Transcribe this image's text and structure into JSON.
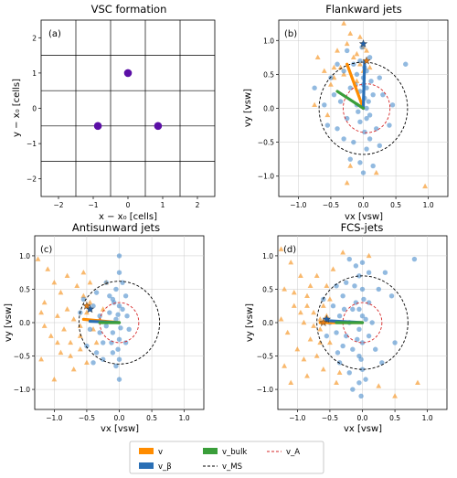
{
  "chart_data": [
    {
      "type": "scatter",
      "panel": "(a)",
      "title": "VSC formation",
      "xlabel": "x − x₀ [cells]",
      "ylabel": "y − x₀ [cells]",
      "xlim": [
        -2.5,
        2.5
      ],
      "ylim": [
        -2.5,
        2.5
      ],
      "xticks": [
        -2,
        -1,
        0,
        1,
        2
      ],
      "yticks": [
        -2,
        -1,
        0,
        1,
        2
      ],
      "grid": "cell boundaries at half-integer positions",
      "points": [
        {
          "x": 0,
          "y": 1
        },
        {
          "x": -0.866,
          "y": -0.5
        },
        {
          "x": 0.866,
          "y": -0.5
        }
      ],
      "point_color": "#5b0fa6"
    },
    {
      "type": "scatter",
      "panel": "(b)",
      "title": "Flankward jets",
      "xlabel": "vx [vsw]",
      "ylabel": "vy [vsw]",
      "xlim": [
        -1.3,
        1.3
      ],
      "ylim": [
        -1.3,
        1.3
      ],
      "xticks": [
        "−1.0",
        "−0.5",
        "0.0",
        "0.5",
        "1.0"
      ],
      "yticks": [
        "−1.0",
        "−0.5",
        "0.0",
        "0.5",
        "1.0"
      ],
      "circles": {
        "v_MS": 0.68,
        "v_A": 0.36,
        "v_A_center": [
          0.05,
          0.0
        ]
      },
      "blue_points": [
        [
          0.05,
          0.0
        ],
        [
          0.02,
          0.15
        ],
        [
          0.05,
          0.3
        ],
        [
          0.0,
          0.45
        ],
        [
          0.05,
          0.55
        ],
        [
          -0.05,
          0.7
        ],
        [
          -0.02,
          0.9
        ],
        [
          0.08,
          0.1
        ],
        [
          0.15,
          0.2
        ],
        [
          0.1,
          -0.1
        ],
        [
          -0.05,
          -0.2
        ],
        [
          0.02,
          -0.35
        ],
        [
          0.1,
          -0.45
        ],
        [
          0.05,
          -0.6
        ],
        [
          -0.15,
          -0.5
        ],
        [
          -0.3,
          -0.45
        ],
        [
          -0.4,
          -0.3
        ],
        [
          -0.25,
          -0.15
        ],
        [
          -0.35,
          0.1
        ],
        [
          -0.45,
          0.2
        ],
        [
          -0.2,
          0.3
        ],
        [
          -0.1,
          0.5
        ],
        [
          -0.3,
          0.55
        ],
        [
          -0.4,
          0.65
        ],
        [
          -0.25,
          0.85
        ],
        [
          -0.15,
          0.65
        ],
        [
          0.1,
          0.75
        ],
        [
          0.25,
          0.45
        ],
        [
          0.3,
          0.2
        ],
        [
          0.2,
          -0.3
        ],
        [
          0.25,
          -0.55
        ],
        [
          -0.05,
          -0.8
        ],
        [
          0.0,
          -0.95
        ],
        [
          -0.2,
          -0.75
        ],
        [
          0.15,
          -0.85
        ],
        [
          -0.5,
          0.45
        ],
        [
          -0.6,
          0.05
        ],
        [
          -0.55,
          -0.25
        ],
        [
          0.45,
          0.05
        ],
        [
          0.4,
          -0.25
        ],
        [
          -0.1,
          0.05
        ],
        [
          -0.05,
          0.25
        ],
        [
          0.0,
          0.35
        ],
        [
          -0.08,
          -0.05
        ],
        [
          0.02,
          0.6
        ],
        [
          0.12,
          0.4
        ],
        [
          -0.12,
          0.35
        ],
        [
          0.05,
          -0.15
        ],
        [
          0.65,
          0.65
        ],
        [
          -0.75,
          0.3
        ]
      ],
      "orange_points": [
        [
          0.0,
          0.55
        ],
        [
          -0.05,
          0.65
        ],
        [
          -0.1,
          0.8
        ],
        [
          -0.05,
          1.05
        ],
        [
          -0.3,
          1.25
        ],
        [
          -0.35,
          0.6
        ],
        [
          -0.45,
          0.45
        ],
        [
          -0.25,
          0.95
        ],
        [
          -0.15,
          0.75
        ],
        [
          -0.5,
          0.35
        ],
        [
          -0.6,
          0.55
        ],
        [
          -0.4,
          0.85
        ],
        [
          -0.7,
          0.75
        ],
        [
          0.05,
          0.85
        ],
        [
          -0.2,
          1.1
        ],
        [
          -0.55,
          -0.1
        ],
        [
          0.0,
          0.9
        ],
        [
          -0.2,
          -0.85
        ],
        [
          0.2,
          -0.95
        ],
        [
          -0.1,
          0.4
        ],
        [
          -0.3,
          0.5
        ],
        [
          -0.45,
          0.6
        ],
        [
          0.1,
          0.6
        ],
        [
          -0.75,
          0.05
        ],
        [
          0.95,
          -1.15
        ],
        [
          -0.25,
          -1.1
        ]
      ],
      "stars": [
        {
          "x": 0.0,
          "y": 0.95,
          "color": "#1f5fa8"
        },
        {
          "x": 0.05,
          "y": 0.7,
          "color": "#e07b16"
        }
      ],
      "arrows": [
        {
          "series": "v",
          "from": [
            0,
            0
          ],
          "to": [
            -0.25,
            0.65
          ],
          "color": "#ff8c00"
        },
        {
          "series": "v_β",
          "from": [
            0,
            0
          ],
          "to": [
            0.02,
            0.7
          ],
          "color": "#2a6fb5"
        },
        {
          "series": "v_bulk",
          "from": [
            0,
            0
          ],
          "to": [
            -0.4,
            0.25
          ],
          "color": "#3a9e3a"
        }
      ]
    },
    {
      "type": "scatter",
      "panel": "(c)",
      "title": "Antisunward jets",
      "xlabel": "vx [vsw]",
      "ylabel": "vy [vsw]",
      "xlim": [
        -1.3,
        1.3
      ],
      "ylim": [
        -1.3,
        1.3
      ],
      "xticks": [
        "−1.0",
        "−0.5",
        "0.0",
        "0.5",
        "1.0"
      ],
      "yticks": [
        "−1.0",
        "−0.5",
        "0.0",
        "0.5",
        "1.0"
      ],
      "circles": {
        "v_MS": 0.62,
        "v_A": 0.3,
        "v_A_center": [
          0.0,
          0.0
        ]
      },
      "blue_points": [
        [
          0.0,
          1.0
        ],
        [
          0.0,
          0.75
        ],
        [
          -0.05,
          0.5
        ],
        [
          -0.1,
          0.35
        ],
        [
          0.0,
          0.25
        ],
        [
          -0.15,
          0.15
        ],
        [
          -0.05,
          0.05
        ],
        [
          -0.2,
          -0.05
        ],
        [
          -0.1,
          -0.15
        ],
        [
          0.0,
          -0.25
        ],
        [
          -0.25,
          -0.3
        ],
        [
          -0.1,
          -0.45
        ],
        [
          0.0,
          -0.55
        ],
        [
          -0.35,
          0.45
        ],
        [
          -0.4,
          0.25
        ],
        [
          -0.3,
          0.1
        ],
        [
          -0.45,
          -0.1
        ],
        [
          -0.5,
          -0.35
        ],
        [
          -0.25,
          -0.55
        ],
        [
          -0.4,
          -0.6
        ],
        [
          0.1,
          0.4
        ],
        [
          0.05,
          0.2
        ],
        [
          0.15,
          -0.1
        ],
        [
          0.1,
          -0.3
        ],
        [
          -0.05,
          -0.65
        ],
        [
          -0.2,
          0.6
        ],
        [
          -0.3,
          -0.15
        ],
        [
          -0.6,
          0.15
        ],
        [
          -0.55,
          0.35
        ],
        [
          -0.15,
          0.4
        ],
        [
          -0.02,
          0.12
        ],
        [
          0.02,
          -0.08
        ],
        [
          -0.08,
          0.3
        ],
        [
          -0.12,
          -0.3
        ],
        [
          0.05,
          0.6
        ],
        [
          -0.35,
          -0.45
        ],
        [
          0.0,
          -0.85
        ],
        [
          -0.02,
          -0.4
        ],
        [
          -0.45,
          0.2
        ],
        [
          0.12,
          0.1
        ]
      ],
      "orange_points": [
        [
          -1.25,
          0.95
        ],
        [
          -1.1,
          0.8
        ],
        [
          -1.0,
          0.6
        ],
        [
          -0.9,
          0.45
        ],
        [
          -1.15,
          0.3
        ],
        [
          -0.8,
          0.2
        ],
        [
          -0.95,
          0.1
        ],
        [
          -0.7,
          0.05
        ],
        [
          -0.85,
          -0.1
        ],
        [
          -1.05,
          -0.2
        ],
        [
          -0.75,
          -0.3
        ],
        [
          -0.6,
          -0.2
        ],
        [
          -0.55,
          0.4
        ],
        [
          -0.65,
          0.55
        ],
        [
          -0.45,
          0.3
        ],
        [
          -0.5,
          0.15
        ],
        [
          -0.6,
          -0.05
        ],
        [
          -0.4,
          -0.1
        ],
        [
          -0.9,
          -0.45
        ],
        [
          -1.2,
          -0.55
        ],
        [
          -0.7,
          -0.7
        ],
        [
          -0.5,
          -0.6
        ],
        [
          -1.0,
          -0.85
        ],
        [
          -0.3,
          0.05
        ],
        [
          -0.8,
          0.7
        ],
        [
          -0.55,
          0.75
        ],
        [
          -1.2,
          0.15
        ],
        [
          -0.35,
          -0.3
        ],
        [
          -0.25,
          0.2
        ],
        [
          -0.6,
          -0.4
        ],
        [
          -1.15,
          -0.05
        ],
        [
          -0.95,
          -0.3
        ],
        [
          -0.2,
          0.6
        ],
        [
          -0.45,
          0.6
        ],
        [
          -0.75,
          -0.5
        ]
      ],
      "stars": [
        {
          "x": -0.45,
          "y": 0.2,
          "color": "#1f5fa8"
        },
        {
          "x": -0.5,
          "y": 0.25,
          "color": "#e07b16"
        }
      ],
      "arrows": [
        {
          "series": "v",
          "from": [
            0,
            0
          ],
          "to": [
            -0.55,
            0.05
          ],
          "color": "#ff8c00"
        },
        {
          "series": "v_β",
          "from": [
            0,
            0
          ],
          "to": [
            -0.45,
            0.02
          ],
          "color": "#2a6fb5"
        },
        {
          "series": "v_bulk",
          "from": [
            0,
            0
          ],
          "to": [
            -0.3,
            0.0
          ],
          "color": "#3a9e3a"
        }
      ]
    },
    {
      "type": "scatter",
      "panel": "(d)",
      "title": "FCS-jets",
      "xlabel": "vx [vsw]",
      "ylabel": "vy [vsw]",
      "xlim": [
        -1.3,
        1.3
      ],
      "ylim": [
        -1.3,
        1.3
      ],
      "xticks": [
        "−1.0",
        "−0.5",
        "0.0",
        "0.5",
        "1.0"
      ],
      "yticks": [
        "−1.0",
        "−0.5",
        "0.0",
        "0.5",
        "1.0"
      ],
      "circles": {
        "v_MS": 0.7,
        "v_A": 0.3,
        "v_A_center": [
          0.0,
          0.0
        ]
      },
      "blue_points": [
        [
          0.0,
          0.9
        ],
        [
          -0.05,
          0.7
        ],
        [
          0.0,
          0.5
        ],
        [
          -0.1,
          0.3
        ],
        [
          0.0,
          0.1
        ],
        [
          -0.05,
          -0.1
        ],
        [
          0.0,
          -0.3
        ],
        [
          -0.05,
          -0.5
        ],
        [
          0.0,
          -0.7
        ],
        [
          -0.05,
          -0.9
        ],
        [
          -0.02,
          -1.1
        ],
        [
          -0.15,
          0.2
        ],
        [
          -0.2,
          0.0
        ],
        [
          -0.25,
          -0.2
        ],
        [
          -0.15,
          -0.4
        ],
        [
          -0.3,
          0.4
        ],
        [
          -0.35,
          0.1
        ],
        [
          -0.4,
          -0.15
        ],
        [
          -0.3,
          -0.35
        ],
        [
          -0.45,
          0.25
        ],
        [
          -0.5,
          0.0
        ],
        [
          -0.55,
          -0.2
        ],
        [
          -0.25,
          0.6
        ],
        [
          -0.4,
          0.55
        ],
        [
          -0.35,
          -0.6
        ],
        [
          -0.2,
          -0.75
        ],
        [
          0.1,
          0.3
        ],
        [
          0.15,
          0.0
        ],
        [
          0.1,
          -0.2
        ],
        [
          0.2,
          -0.4
        ],
        [
          0.25,
          0.5
        ],
        [
          0.3,
          -0.6
        ],
        [
          0.45,
          0.4
        ],
        [
          0.5,
          -0.3
        ],
        [
          -0.6,
          0.35
        ],
        [
          -0.1,
          0.85
        ],
        [
          -0.2,
          0.95
        ],
        [
          0.1,
          0.75
        ],
        [
          0.05,
          -0.85
        ],
        [
          -0.15,
          -1.0
        ],
        [
          0.8,
          0.95
        ],
        [
          0.35,
          0.75
        ],
        [
          -0.05,
          0.2
        ],
        [
          -0.08,
          -0.25
        ],
        [
          0.02,
          0.35
        ],
        [
          -0.12,
          0.55
        ],
        [
          -0.28,
          0.2
        ],
        [
          -0.02,
          -0.55
        ],
        [
          -0.38,
          -0.45
        ],
        [
          0.05,
          0.05
        ]
      ],
      "orange_points": [
        [
          -1.25,
          1.1
        ],
        [
          -1.1,
          0.9
        ],
        [
          -0.95,
          0.7
        ],
        [
          -1.2,
          0.5
        ],
        [
          -0.85,
          0.4
        ],
        [
          -1.05,
          0.25
        ],
        [
          -0.75,
          0.15
        ],
        [
          -0.9,
          0.0
        ],
        [
          -1.15,
          -0.15
        ],
        [
          -0.8,
          -0.25
        ],
        [
          -0.65,
          -0.1
        ],
        [
          -1.0,
          -0.4
        ],
        [
          -0.7,
          -0.5
        ],
        [
          -1.2,
          -0.65
        ],
        [
          -0.85,
          -0.8
        ],
        [
          -0.6,
          0.25
        ],
        [
          -0.55,
          0.55
        ],
        [
          -0.7,
          0.7
        ],
        [
          -0.45,
          0.8
        ],
        [
          -0.5,
          -0.3
        ],
        [
          -0.6,
          -0.7
        ],
        [
          -0.4,
          -0.9
        ],
        [
          -1.25,
          0.05
        ],
        [
          -0.65,
          0.05
        ],
        [
          -0.75,
          -0.05
        ],
        [
          -0.55,
          0.1
        ],
        [
          -0.95,
          0.15
        ],
        [
          -0.8,
          0.55
        ],
        [
          -1.1,
          -0.9
        ],
        [
          -0.3,
          1.05
        ],
        [
          0.1,
          1.0
        ],
        [
          0.5,
          -1.1
        ],
        [
          0.85,
          -0.9
        ],
        [
          0.25,
          -0.95
        ],
        [
          -0.35,
          -0.75
        ],
        [
          -1.05,
          0.45
        ],
        [
          -0.65,
          -0.3
        ],
        [
          -0.9,
          -0.55
        ],
        [
          -0.5,
          0.35
        ],
        [
          -0.85,
          0.25
        ]
      ],
      "stars": [
        {
          "x": -0.55,
          "y": 0.05,
          "color": "#1f5fa8"
        },
        {
          "x": -0.6,
          "y": 0.0,
          "color": "#e07b16"
        }
      ],
      "arrows": [
        {
          "series": "v",
          "from": [
            0,
            0
          ],
          "to": [
            -0.65,
            0.0
          ],
          "color": "#ff8c00"
        },
        {
          "series": "v_β",
          "from": [
            0,
            0
          ],
          "to": [
            -0.55,
            0.03
          ],
          "color": "#2a6fb5"
        },
        {
          "series": "v_bulk",
          "from": [
            0,
            0
          ],
          "to": [
            -0.4,
            0.0
          ],
          "color": "#3a9e3a"
        }
      ]
    }
  ],
  "colors": {
    "v": "#ff8c00",
    "v_beta": "#2a6fb5",
    "v_bulk": "#3a9e3a",
    "v_MS": "#000000",
    "v_A": "#d62728",
    "blue_scatter": "#4a8ccb",
    "orange_scatter": "#f7a23d",
    "purple_dots": "#5b0fa6",
    "grid": "#cccccc"
  },
  "legend": {
    "placement": "bottom-center",
    "items": [
      {
        "label": "v",
        "kind": "patch",
        "color": "#ff8c00"
      },
      {
        "label": "v_bulk",
        "kind": "patch",
        "color": "#3a9e3a"
      },
      {
        "label": "v_A",
        "kind": "dashed",
        "color": "#d62728"
      },
      {
        "label": "v_β",
        "kind": "patch",
        "color": "#2a6fb5"
      },
      {
        "label": "v_MS",
        "kind": "dashed",
        "color": "#000000"
      }
    ]
  }
}
